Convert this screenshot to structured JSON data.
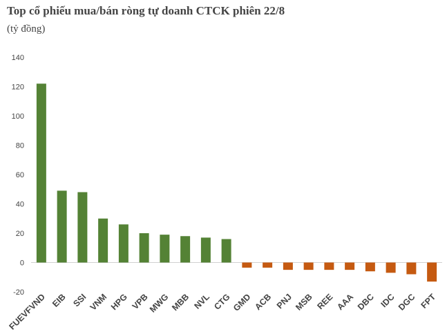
{
  "chart_data": {
    "type": "bar",
    "title": "Top cổ phiếu mua/bán ròng tự doanh CTCK phiên 22/8",
    "subtitle": "(tỷ đồng)",
    "xlabel": "",
    "ylabel": "",
    "ylim": [
      -20,
      140
    ],
    "yticks": [
      -20,
      0,
      20,
      40,
      60,
      80,
      100,
      120,
      140
    ],
    "grid": false,
    "legend": "none",
    "categories": [
      "FUEVFVND",
      "EIB",
      "SSI",
      "VNM",
      "HPG",
      "VPB",
      "MWG",
      "MBB",
      "NVL",
      "CTG",
      "GMD",
      "ACB",
      "PNJ",
      "MSB",
      "REE",
      "AAA",
      "DBC",
      "IDC",
      "DGC",
      "FPT"
    ],
    "values": [
      122,
      49,
      48,
      30,
      26,
      20,
      19,
      18,
      17,
      16,
      -3.5,
      -3.5,
      -5,
      -5,
      -5,
      -5,
      -6,
      -7,
      -8,
      -13
    ],
    "colors": {
      "positive": "#548235",
      "negative": "#c55a11"
    }
  }
}
